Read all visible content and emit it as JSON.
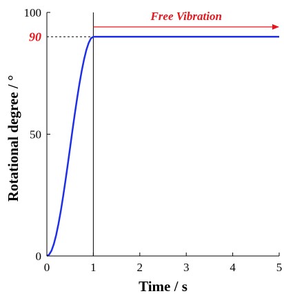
{
  "chart_data": {
    "type": "line",
    "xlabel": "Time / s",
    "ylabel": "Rotational degree / °",
    "xlim": [
      0,
      5
    ],
    "ylim": [
      0,
      100
    ],
    "x_ticks": [
      0,
      1,
      2,
      3,
      4,
      5
    ],
    "y_ticks": [
      0,
      50,
      100
    ],
    "grid": false,
    "series": [
      {
        "color": "#1f2fe6",
        "x": [
          0,
          0.05,
          0.1,
          0.15,
          0.2,
          0.25,
          0.3,
          0.35,
          0.4,
          0.45,
          0.5,
          0.55,
          0.6,
          0.65,
          0.7,
          0.75,
          0.8,
          0.85,
          0.9,
          0.95,
          1.0,
          5.0
        ],
        "y": [
          0,
          0.6,
          2.2,
          4.9,
          8.6,
          13.2,
          18.5,
          24.5,
          30.9,
          37.6,
          44.5,
          51.5,
          58.2,
          64.6,
          70.6,
          76.0,
          80.7,
          84.6,
          87.5,
          89.4,
          90,
          90
        ]
      }
    ],
    "reference_lines": [
      {
        "type": "vertical",
        "x": 1,
        "color": "#000000"
      },
      {
        "type": "horizontal-dashed",
        "y": 90,
        "x_range": [
          0,
          1
        ],
        "color": "#000000"
      }
    ],
    "annotations": {
      "free_vibration": {
        "text": "Free Vibration",
        "color": "#e8141c",
        "x_start": 1,
        "x_end": 5
      },
      "y_marker": {
        "text": "90",
        "value": 90,
        "color": "#e8141c"
      }
    }
  }
}
